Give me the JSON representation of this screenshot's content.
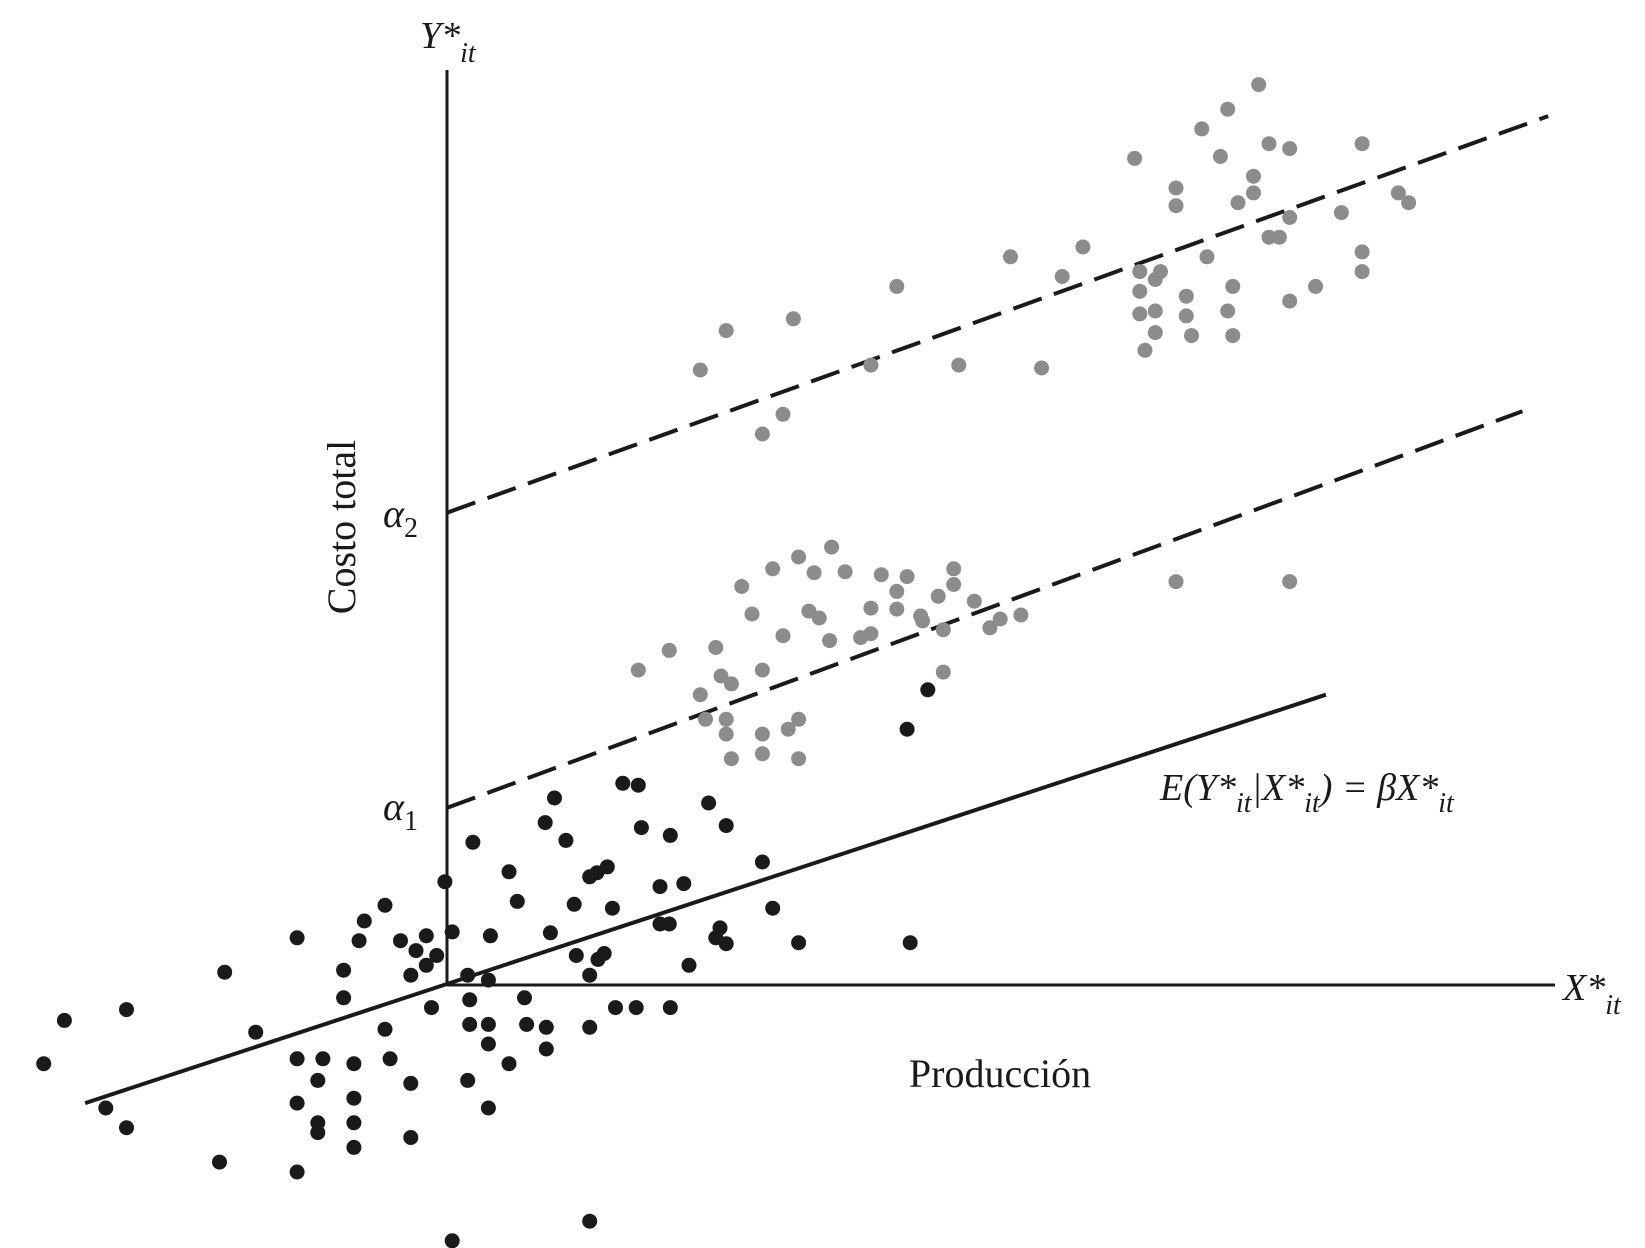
{
  "chart_data": {
    "type": "scatter",
    "title": "",
    "axes": {
      "y_label": "Y*",
      "y_label_sub": "it",
      "x_label": "X*",
      "x_label_sub": "it",
      "y_title": "Costo total",
      "x_title": "Producción"
    },
    "intercepts": [
      {
        "name": "α",
        "sub": "1"
      },
      {
        "name": "α",
        "sub": "2"
      }
    ],
    "equation": {
      "p1": "E(Y*",
      "s1": "it",
      "p2": "|X*",
      "s2": "it",
      "p3": ") = βX*",
      "s3": "it"
    },
    "colors": {
      "pooled_points": "#1a1a1a",
      "group_points": "#8c8c8c",
      "lines": "#1a1a1a"
    },
    "lines": [
      {
        "style": "solid",
        "x": [
          -3.5,
          8.5
        ],
        "y": [
          -1.2,
          2.95
        ]
      },
      {
        "style": "dashed",
        "x": [
          0,
          10.4
        ],
        "y": [
          1.8,
          5.83
        ]
      },
      {
        "style": "dashed",
        "x": [
          0,
          10.65
        ],
        "y": [
          4.8,
          8.83
        ]
      }
    ],
    "pooled_points": [
      [
        -3.9,
        -0.8
      ],
      [
        -3.7,
        -0.36
      ],
      [
        -3.1,
        -0.25
      ],
      [
        -3.3,
        -1.25
      ],
      [
        -3.1,
        -1.45
      ],
      [
        -2.2,
        -1.8
      ],
      [
        -2.15,
        0.13
      ],
      [
        -1.85,
        -0.48
      ],
      [
        -1.45,
        0.48
      ],
      [
        -1.45,
        -0.75
      ],
      [
        -1.2,
        -0.75
      ],
      [
        -1.45,
        -1.2
      ],
      [
        -1.25,
        -0.97
      ],
      [
        -1.45,
        -1.9
      ],
      [
        -1.25,
        -1.5
      ],
      [
        -1.25,
        -1.4
      ],
      [
        -1.0,
        0.15
      ],
      [
        -1.0,
        -0.13
      ],
      [
        -0.9,
        -0.8
      ],
      [
        -0.9,
        -1.15
      ],
      [
        -0.9,
        -1.4
      ],
      [
        -0.9,
        -1.65
      ],
      [
        -0.85,
        0.45
      ],
      [
        -0.8,
        0.65
      ],
      [
        -0.6,
        -0.45
      ],
      [
        -0.55,
        -0.75
      ],
      [
        -0.6,
        0.81
      ],
      [
        -0.45,
        0.45
      ],
      [
        -0.35,
        0.1
      ],
      [
        -0.35,
        -1.0
      ],
      [
        -0.35,
        -1.55
      ],
      [
        -0.3,
        0.35
      ],
      [
        -0.2,
        0.5
      ],
      [
        -0.2,
        0.2
      ],
      [
        -0.15,
        -0.23
      ],
      [
        -0.1,
        0.3
      ],
      [
        -0.02,
        1.05
      ],
      [
        0.05,
        0.54
      ],
      [
        0.05,
        -2.6
      ],
      [
        0.25,
        1.45
      ],
      [
        0.2,
        0.1
      ],
      [
        0.22,
        -0.15
      ],
      [
        0.22,
        -0.4
      ],
      [
        0.2,
        -0.97
      ],
      [
        0.4,
        0.05
      ],
      [
        0.4,
        -0.4
      ],
      [
        0.4,
        -0.6
      ],
      [
        0.4,
        -1.25
      ],
      [
        0.42,
        0.5
      ],
      [
        0.6,
        1.15
      ],
      [
        0.6,
        -0.8
      ],
      [
        0.68,
        0.85
      ],
      [
        0.75,
        -0.13
      ],
      [
        0.77,
        -0.4
      ],
      [
        0.95,
        1.65
      ],
      [
        0.96,
        -0.43
      ],
      [
        0.96,
        -0.65
      ],
      [
        1.04,
        1.9
      ],
      [
        1.0,
        0.53
      ],
      [
        1.15,
        1.47
      ],
      [
        1.23,
        0.82
      ],
      [
        1.25,
        0.3
      ],
      [
        1.38,
        1.1
      ],
      [
        1.38,
        -0.43
      ],
      [
        1.38,
        -2.4
      ],
      [
        1.38,
        0.1
      ],
      [
        1.45,
        1.14
      ],
      [
        1.46,
        0.26
      ],
      [
        1.52,
        0.32
      ],
      [
        1.55,
        1.2
      ],
      [
        1.6,
        0.78
      ],
      [
        1.63,
        -0.23
      ],
      [
        1.7,
        2.05
      ],
      [
        1.85,
        2.03
      ],
      [
        1.83,
        -0.23
      ],
      [
        1.88,
        1.6
      ],
      [
        2.06,
        0.62
      ],
      [
        2.06,
        1.0
      ],
      [
        2.16,
        1.52
      ],
      [
        2.15,
        0.62
      ],
      [
        2.16,
        -0.23
      ],
      [
        2.29,
        1.03
      ],
      [
        2.34,
        0.2
      ],
      [
        2.53,
        1.85
      ],
      [
        2.6,
        0.48
      ],
      [
        2.64,
        0.58
      ],
      [
        2.7,
        0.42
      ],
      [
        2.7,
        1.62
      ],
      [
        3.05,
        1.25
      ],
      [
        3.15,
        0.78
      ],
      [
        3.4,
        0.43
      ],
      [
        4.45,
        2.6
      ],
      [
        4.48,
        0.43
      ],
      [
        4.65,
        3.0
      ]
    ],
    "group_points": [
      [
        1.85,
        3.2
      ],
      [
        2.15,
        3.4
      ],
      [
        2.45,
        2.95
      ],
      [
        2.5,
        2.7
      ],
      [
        2.6,
        3.43
      ],
      [
        2.65,
        3.14
      ],
      [
        2.7,
        2.7
      ],
      [
        2.7,
        2.55
      ],
      [
        2.75,
        2.3
      ],
      [
        2.75,
        3.06
      ],
      [
        2.85,
        4.05
      ],
      [
        2.95,
        3.77
      ],
      [
        3.05,
        2.55
      ],
      [
        3.05,
        2.35
      ],
      [
        3.05,
        3.2
      ],
      [
        3.15,
        4.23
      ],
      [
        3.25,
        3.55
      ],
      [
        3.3,
        2.6
      ],
      [
        3.4,
        4.35
      ],
      [
        3.4,
        2.7
      ],
      [
        3.4,
        2.3
      ],
      [
        3.5,
        3.8
      ],
      [
        3.55,
        4.19
      ],
      [
        3.6,
        3.73
      ],
      [
        3.7,
        3.5
      ],
      [
        3.72,
        4.45
      ],
      [
        3.85,
        4.2
      ],
      [
        4.0,
        3.53
      ],
      [
        4.1,
        3.83
      ],
      [
        4.1,
        3.57
      ],
      [
        4.2,
        4.17
      ],
      [
        4.35,
        3.82
      ],
      [
        4.35,
        4.0
      ],
      [
        4.45,
        4.15
      ],
      [
        4.6,
        3.7
      ],
      [
        4.58,
        3.75
      ],
      [
        4.75,
        3.95
      ],
      [
        4.8,
        3.61
      ],
      [
        4.8,
        3.18
      ],
      [
        4.9,
        4.07
      ],
      [
        4.9,
        4.23
      ],
      [
        5.1,
        3.9
      ],
      [
        5.25,
        3.63
      ],
      [
        5.35,
        3.72
      ],
      [
        5.55,
        3.76
      ],
      [
        7.05,
        4.1
      ],
      [
        8.15,
        4.1
      ],
      [
        2.45,
        6.25
      ],
      [
        2.7,
        6.65
      ],
      [
        3.05,
        5.6
      ],
      [
        3.25,
        5.8
      ],
      [
        3.35,
        6.77
      ],
      [
        4.1,
        6.3
      ],
      [
        4.35,
        7.1
      ],
      [
        4.95,
        6.3
      ],
      [
        5.45,
        7.4
      ],
      [
        5.75,
        6.27
      ],
      [
        5.95,
        7.2
      ],
      [
        6.15,
        7.5
      ],
      [
        6.65,
        8.4
      ],
      [
        6.7,
        7.25
      ],
      [
        6.7,
        7.05
      ],
      [
        6.7,
        6.82
      ],
      [
        6.75,
        6.45
      ],
      [
        6.85,
        7.17
      ],
      [
        6.85,
        6.85
      ],
      [
        6.85,
        6.63
      ],
      [
        6.9,
        7.25
      ],
      [
        7.05,
        8.1
      ],
      [
        7.05,
        7.92
      ],
      [
        7.15,
        7.0
      ],
      [
        7.15,
        6.8
      ],
      [
        7.2,
        6.6
      ],
      [
        7.3,
        8.7
      ],
      [
        7.35,
        7.4
      ],
      [
        7.48,
        8.42
      ],
      [
        7.55,
        8.9
      ],
      [
        7.55,
        6.85
      ],
      [
        7.6,
        7.1
      ],
      [
        7.6,
        6.6
      ],
      [
        7.65,
        7.95
      ],
      [
        7.8,
        8.22
      ],
      [
        7.8,
        8.05
      ],
      [
        7.85,
        9.15
      ],
      [
        7.95,
        8.55
      ],
      [
        7.95,
        7.6
      ],
      [
        8.05,
        7.6
      ],
      [
        8.15,
        8.5
      ],
      [
        8.15,
        7.8
      ],
      [
        8.15,
        6.95
      ],
      [
        8.4,
        7.1
      ],
      [
        8.65,
        7.85
      ],
      [
        8.85,
        8.55
      ],
      [
        8.85,
        7.45
      ],
      [
        8.85,
        7.25
      ],
      [
        9.2,
        8.05
      ],
      [
        9.3,
        7.95
      ]
    ]
  }
}
